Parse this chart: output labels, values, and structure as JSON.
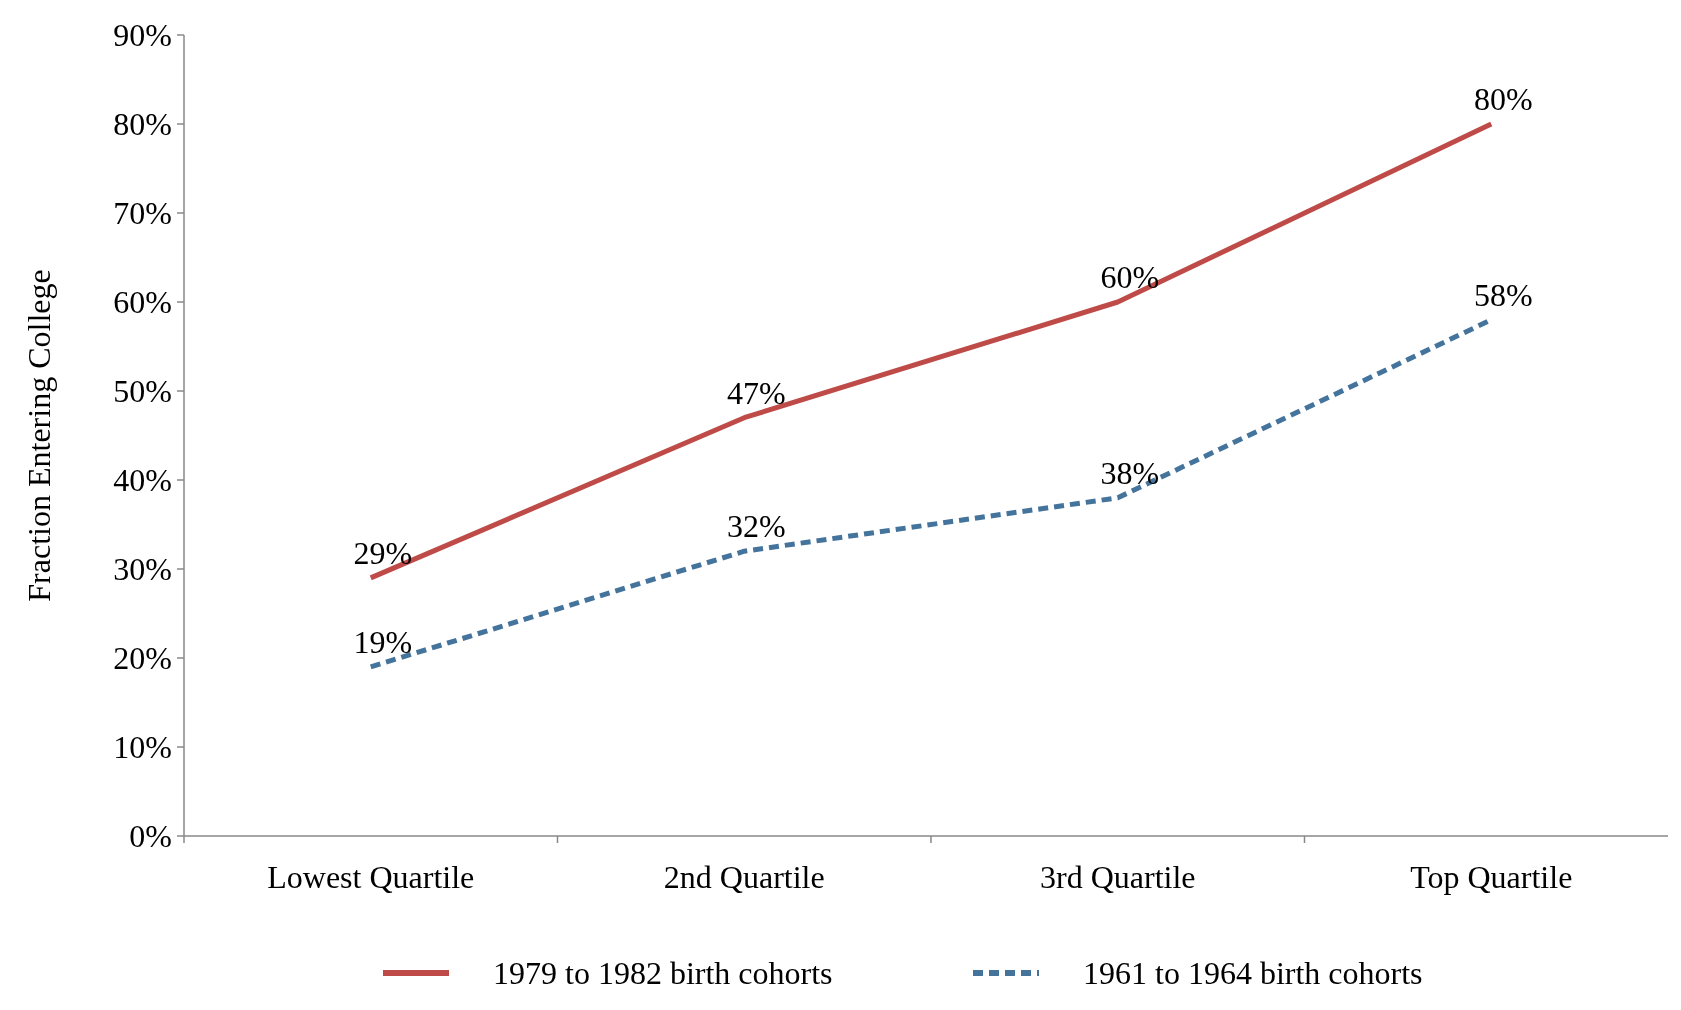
{
  "chart_data": {
    "type": "line",
    "ylabel": "Fraction Entering College",
    "categories": [
      "Lowest Quartile",
      "2nd Quartile",
      "3rd Quartile",
      "Top Quartile"
    ],
    "series": [
      {
        "name": "1979 to 1982 birth cohorts",
        "color": "#be4b48",
        "values": [
          29,
          47,
          60,
          80
        ],
        "value_labels": [
          "29%",
          "47%",
          "60%",
          "80%"
        ],
        "line_style": "solid"
      },
      {
        "name": "1961 to 1964 birth cohorts",
        "color": "#44739c",
        "values": [
          19,
          32,
          38,
          58
        ],
        "value_labels": [
          "19%",
          "32%",
          "38%",
          "58%"
        ],
        "line_style": "dashed"
      }
    ],
    "ylim": [
      0,
      90
    ],
    "yticks": [
      {
        "value": 0,
        "label": "0%"
      },
      {
        "value": 10,
        "label": "10%"
      },
      {
        "value": 20,
        "label": "20%"
      },
      {
        "value": 30,
        "label": "30%"
      },
      {
        "value": 40,
        "label": "40%"
      },
      {
        "value": 50,
        "label": "50%"
      },
      {
        "value": 60,
        "label": "60%"
      },
      {
        "value": 70,
        "label": "70%"
      },
      {
        "value": 80,
        "label": "80%"
      },
      {
        "value": 90,
        "label": "90%"
      }
    ],
    "legend": "bottom",
    "grid": false
  }
}
